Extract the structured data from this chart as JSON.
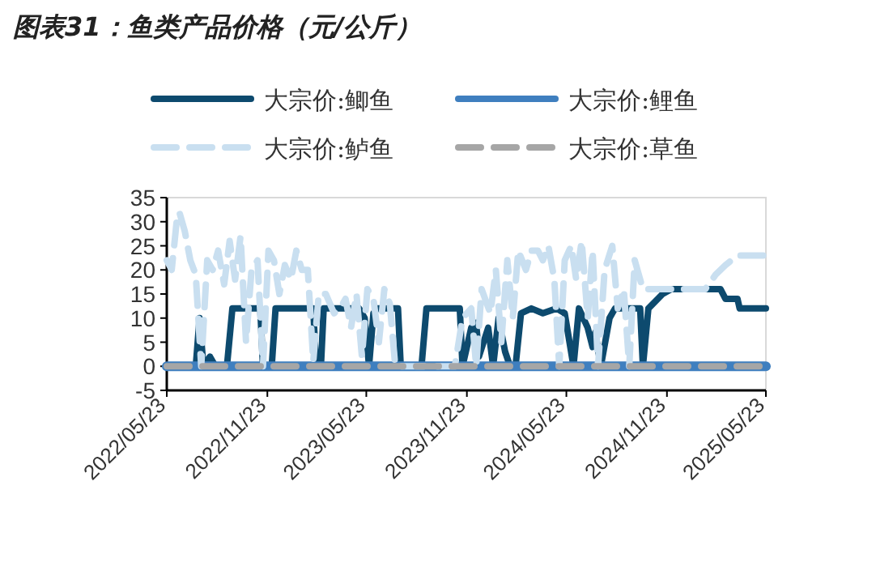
{
  "chart_data": {
    "type": "line",
    "title": "图表31：鱼类产品价格（元/公斤）",
    "ylim": [
      -5,
      35
    ],
    "yticks": [
      -5,
      0,
      5,
      10,
      15,
      20,
      25,
      30,
      35
    ],
    "xlim": [
      "2022-05-23",
      "2025-05-23"
    ],
    "xticks": [
      {
        "value": "2022-05-23",
        "label": "2022/05/23"
      },
      {
        "value": "2022-11-23",
        "label": "2022/11/23"
      },
      {
        "value": "2023-05-23",
        "label": "2023/05/23"
      },
      {
        "value": "2023-11-23",
        "label": "2023/11/23"
      },
      {
        "value": "2024-05-23",
        "label": "2024/05/23"
      },
      {
        "value": "2024-11-23",
        "label": "2024/11/23"
      },
      {
        "value": "2025-05-23",
        "label": "2025/05/23"
      }
    ],
    "grid": false,
    "legend": "top",
    "marker": "none",
    "series": [
      {
        "name": "大宗价:鲫鱼",
        "color": "#0d4a6e",
        "line_style": "solid",
        "x": [
          "2022-05-23",
          "2022-07-15",
          "2022-07-22",
          "2022-07-29",
          "2022-08-10",
          "2022-08-20",
          "2022-09-10",
          "2022-09-20",
          "2022-11-10",
          "2022-11-15",
          "2022-12-01",
          "2022-12-08",
          "2023-02-15",
          "2023-02-20",
          "2023-03-01",
          "2023-03-06",
          "2023-05-10",
          "2023-05-20",
          "2023-05-28",
          "2023-06-05",
          "2023-06-12",
          "2023-07-20",
          "2023-07-25",
          "2023-09-01",
          "2023-09-10",
          "2023-11-10",
          "2023-11-15",
          "2023-12-01",
          "2023-12-10",
          "2023-12-15",
          "2024-01-01",
          "2024-01-10",
          "2024-01-20",
          "2024-02-01",
          "2024-02-10",
          "2024-02-20",
          "2024-03-01",
          "2024-03-20",
          "2024-04-10",
          "2024-05-05",
          "2024-05-20",
          "2024-06-05",
          "2024-06-15",
          "2024-07-01",
          "2024-07-10",
          "2024-07-15",
          "2024-07-25",
          "2024-08-10",
          "2024-08-20",
          "2024-09-20",
          "2024-10-05",
          "2024-10-10",
          "2024-10-20",
          "2024-11-15",
          "2024-12-01",
          "2025-03-01",
          "2025-03-10",
          "2025-04-01",
          "2025-04-05",
          "2025-05-23"
        ],
        "values": [
          0,
          0,
          10,
          0,
          2,
          0,
          0,
          12,
          12,
          0,
          0,
          12,
          12,
          0,
          0,
          12,
          12,
          10,
          0,
          11,
          12,
          12,
          0,
          0,
          12,
          12,
          0,
          8,
          9,
          2,
          8,
          0,
          10,
          3,
          0,
          0,
          11,
          12,
          11,
          12,
          11,
          0,
          12,
          8,
          4,
          7,
          0,
          10,
          12,
          12,
          12,
          0,
          12,
          15,
          16,
          16,
          14,
          14,
          12,
          12
        ]
      },
      {
        "name": "大宗价:鲤鱼",
        "color": "#3f7fbf",
        "line_style": "solid",
        "x": [
          "2022-05-23",
          "2025-05-23"
        ],
        "values": [
          0,
          0
        ]
      },
      {
        "name": "大宗价:鲈鱼",
        "color": "#c9dff0",
        "line_style": "dashed",
        "x": [
          "2022-05-23",
          "2022-06-01",
          "2022-06-10",
          "2022-06-15",
          "2022-06-25",
          "2022-07-05",
          "2022-07-15",
          "2022-07-25",
          "2022-08-05",
          "2022-08-15",
          "2022-08-25",
          "2022-09-05",
          "2022-09-15",
          "2022-09-25",
          "2022-10-05",
          "2022-10-15",
          "2022-10-25",
          "2022-11-05",
          "2022-11-15",
          "2022-11-25",
          "2022-12-05",
          "2022-12-15",
          "2022-12-25",
          "2023-01-05",
          "2023-01-15",
          "2023-01-25",
          "2023-02-05",
          "2023-02-15",
          "2023-02-25",
          "2023-03-10",
          "2023-03-25",
          "2023-04-05",
          "2023-04-15",
          "2023-04-25",
          "2023-05-05",
          "2023-05-15",
          "2023-05-25",
          "2023-06-05",
          "2023-06-15",
          "2023-06-25",
          "2023-07-05",
          "2023-07-15",
          "2023-11-01",
          "2023-11-15",
          "2023-12-01",
          "2023-12-10",
          "2023-12-20",
          "2024-01-05",
          "2024-01-15",
          "2024-01-25",
          "2024-02-05",
          "2024-02-15",
          "2024-02-25",
          "2024-03-10",
          "2024-03-20",
          "2024-04-01",
          "2024-04-10",
          "2024-04-20",
          "2024-05-01",
          "2024-05-10",
          "2024-05-20",
          "2024-06-01",
          "2024-06-10",
          "2024-06-20",
          "2024-07-01",
          "2024-07-10",
          "2024-07-20",
          "2024-08-01",
          "2024-08-15",
          "2024-08-25",
          "2024-09-05",
          "2024-09-15",
          "2024-09-25",
          "2024-10-10",
          "2024-10-20",
          "2025-02-01",
          "2025-02-20",
          "2025-03-10",
          "2025-04-01",
          "2025-05-23"
        ],
        "values": [
          22,
          20,
          30,
          32,
          28,
          22,
          19,
          0,
          22,
          20,
          24,
          17,
          26,
          18,
          27,
          5,
          20,
          22,
          0,
          24,
          22,
          15,
          21,
          18,
          24,
          20,
          20,
          1,
          15,
          15,
          11,
          12,
          14,
          8,
          15,
          2,
          16,
          14,
          5,
          16,
          13,
          0,
          0,
          10,
          12,
          0,
          16,
          11,
          20,
          5,
          22,
          10,
          24,
          20,
          24,
          24,
          22,
          25,
          18,
          0,
          22,
          25,
          18,
          26,
          10,
          24,
          0,
          20,
          25,
          12,
          16,
          0,
          22,
          16,
          16,
          16,
          19,
          21,
          23,
          23
        ]
      },
      {
        "name": "大宗价:草鱼",
        "color": "#a6a6a6",
        "line_style": "dashed",
        "x": [
          "2022-05-23",
          "2025-05-23"
        ],
        "values": [
          0,
          0
        ]
      }
    ]
  }
}
